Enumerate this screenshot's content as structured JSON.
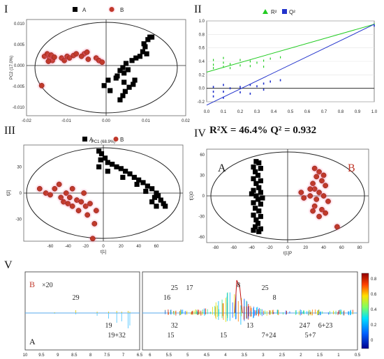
{
  "chart_data": [
    {
      "panel": "I",
      "type": "scatter",
      "xlabel": "",
      "ylabel": "PC2 (17.0%)",
      "xlim": [
        -0.02,
        0.02
      ],
      "ylim": [
        -0.012,
        0.011
      ],
      "xticks": [
        "-0.02",
        "-0.01",
        "0.00",
        "0.01",
        "0.02"
      ],
      "yticks": [
        "-0.010",
        "-0.005",
        "0.000",
        "0.005",
        "0.010"
      ],
      "series": [
        {
          "name": "A",
          "color": "#000000",
          "marker": "square",
          "points": [
            [
              0.011,
              0.0068
            ],
            [
              0.0115,
              0.0068
            ],
            [
              0.0105,
              0.0062
            ],
            [
              0.0095,
              0.0052
            ],
            [
              0.0098,
              0.0045
            ],
            [
              0.0092,
              0.0033
            ],
            [
              0.0102,
              0.0028
            ],
            [
              0.0085,
              0.0022
            ],
            [
              0.0075,
              0.0018
            ],
            [
              0.0065,
              0.0012
            ],
            [
              0.005,
              0.0005
            ],
            [
              0.0042,
              -0.0005
            ],
            [
              0.0055,
              -0.001
            ],
            [
              0.0045,
              -0.0018
            ],
            [
              0.0035,
              -0.0012
            ],
            [
              0.0028,
              -0.0025
            ],
            [
              0.0025,
              -0.003
            ],
            [
              0.0045,
              -0.004
            ],
            [
              0.0058,
              -0.0052
            ],
            [
              0.0068,
              -0.0045
            ],
            [
              0.0072,
              -0.0035
            ],
            [
              0.0048,
              -0.0062
            ],
            [
              0.0042,
              -0.0072
            ],
            [
              0.0035,
              -0.0082
            ],
            [
              -0.0005,
              -0.0048
            ],
            [
              0.001,
              -0.006
            ],
            [
              0.0005,
              -0.0035
            ]
          ]
        },
        {
          "name": "B",
          "color": "#c0392b",
          "marker": "circle",
          "points": [
            [
              -0.0155,
              0.0022
            ],
            [
              -0.0148,
              0.0028
            ],
            [
              -0.0142,
              0.0018
            ],
            [
              -0.0138,
              0.0025
            ],
            [
              -0.0135,
              0.0012
            ],
            [
              -0.013,
              0.002
            ],
            [
              -0.0145,
              0.001
            ],
            [
              -0.0112,
              0.0018
            ],
            [
              -0.0105,
              0.0012
            ],
            [
              -0.0098,
              0.0022
            ],
            [
              -0.0092,
              0.0018
            ],
            [
              -0.0082,
              0.0024
            ],
            [
              -0.0075,
              0.0028
            ],
            [
              -0.0055,
              0.0028
            ],
            [
              -0.0048,
              0.0032
            ],
            [
              -0.0062,
              0.0022
            ],
            [
              -0.0045,
              0.0015
            ],
            [
              -0.0025,
              0.0018
            ],
            [
              -0.0018,
              0.0012
            ],
            [
              -0.001,
              0.0008
            ],
            [
              -0.0162,
              -0.0048
            ]
          ]
        }
      ]
    },
    {
      "panel": "II",
      "type": "scatter",
      "xlim": [
        0,
        1.0
      ],
      "ylim": [
        -0.2,
        1.0
      ],
      "xticks": [
        "0.0",
        "0.1",
        "0.2",
        "0.3",
        "0.4",
        "0.5",
        "0.6",
        "0.7",
        "0.8",
        "0.9",
        "1.0"
      ],
      "yticks": [
        "-0.2",
        "0.0",
        "0.2",
        "0.4",
        "0.6",
        "0.8",
        "1.0"
      ],
      "legend": [
        "R²",
        "Q²"
      ],
      "series": [
        {
          "name": "R²",
          "color": "#22cc22",
          "marker": "triangle",
          "regression": [
            [
              0,
              0.24
            ],
            [
              1.0,
              0.95
            ]
          ],
          "points": [
            [
              0.04,
              0.42
            ],
            [
              0.04,
              0.35
            ],
            [
              0.04,
              0.3
            ],
            [
              0.1,
              0.45
            ],
            [
              0.1,
              0.38
            ],
            [
              0.1,
              0.32
            ],
            [
              0.14,
              0.36
            ],
            [
              0.14,
              0.3
            ],
            [
              0.2,
              0.42
            ],
            [
              0.2,
              0.34
            ],
            [
              0.26,
              0.4
            ],
            [
              0.26,
              0.33
            ],
            [
              0.3,
              0.38
            ],
            [
              0.34,
              0.41
            ],
            [
              0.34,
              0.32
            ],
            [
              0.38,
              0.44
            ],
            [
              0.44,
              0.46
            ],
            [
              1.0,
              0.95
            ]
          ]
        },
        {
          "name": "Q²",
          "color": "#2233cc",
          "marker": "square",
          "regression": [
            [
              0,
              -0.25
            ],
            [
              1.0,
              0.95
            ]
          ],
          "points": [
            [
              0.04,
              0.02
            ],
            [
              0.04,
              -0.05
            ],
            [
              0.04,
              -0.12
            ],
            [
              0.1,
              0.05
            ],
            [
              0.1,
              -0.05
            ],
            [
              0.1,
              -0.14
            ],
            [
              0.14,
              0.0
            ],
            [
              0.2,
              0.02
            ],
            [
              0.2,
              -0.06
            ],
            [
              0.26,
              0.05
            ],
            [
              0.26,
              -0.08
            ],
            [
              0.3,
              0.03
            ],
            [
              0.34,
              0.07
            ],
            [
              0.34,
              -0.02
            ],
            [
              0.38,
              0.1
            ],
            [
              0.44,
              0.12
            ],
            [
              1.0,
              0.93
            ]
          ]
        }
      ]
    },
    {
      "panel": "III",
      "type": "scatter",
      "xlabel": "t[1]",
      "ylabel": "t[2]",
      "title": "PC1 (68.9%)",
      "xlim": [
        -90,
        90
      ],
      "ylim": [
        -55,
        55
      ],
      "xticks": [
        "-60",
        "-40",
        "-20",
        "0",
        "20",
        "40",
        "60"
      ],
      "yticks": [
        "-30",
        "0",
        "30"
      ],
      "legend": [
        "A",
        "B"
      ],
      "series": [
        {
          "name": "A",
          "color": "#000000",
          "marker": "square",
          "points": [
            [
              -5,
              48
            ],
            [
              -2,
              45
            ],
            [
              2,
              40
            ],
            [
              -3,
              38
            ],
            [
              5,
              35
            ],
            [
              10,
              33
            ],
            [
              15,
              30
            ],
            [
              20,
              28
            ],
            [
              25,
              25
            ],
            [
              30,
              22
            ],
            [
              22,
              18
            ],
            [
              35,
              18
            ],
            [
              40,
              15
            ],
            [
              45,
              12
            ],
            [
              38,
              10
            ],
            [
              50,
              8
            ],
            [
              55,
              5
            ],
            [
              48,
              2
            ],
            [
              60,
              0
            ],
            [
              62,
              -3
            ],
            [
              58,
              -5
            ],
            [
              65,
              -8
            ],
            [
              68,
              -12
            ],
            [
              60,
              -15
            ],
            [
              55,
              -10
            ],
            [
              70,
              -15
            ],
            [
              5,
              25
            ],
            [
              -5,
              30
            ]
          ]
        },
        {
          "name": "B",
          "color": "#c0392b",
          "marker": "circle",
          "points": [
            [
              -72,
              5
            ],
            [
              -65,
              0
            ],
            [
              -60,
              -2
            ],
            [
              -55,
              5
            ],
            [
              -50,
              10
            ],
            [
              -48,
              -5
            ],
            [
              -45,
              -10
            ],
            [
              -40,
              -12
            ],
            [
              -35,
              -15
            ],
            [
              -42,
              0
            ],
            [
              -38,
              -5
            ],
            [
              -30,
              -8
            ],
            [
              -25,
              -10
            ],
            [
              -20,
              -15
            ],
            [
              -15,
              -12
            ],
            [
              -28,
              -20
            ],
            [
              -18,
              -25
            ],
            [
              -10,
              -35
            ],
            [
              -22,
              0
            ],
            [
              -35,
              5
            ],
            [
              -12,
              -52
            ],
            [
              -8,
              -20
            ]
          ]
        }
      ]
    },
    {
      "panel": "IV",
      "type": "scatter",
      "xlabel": "t[1]P",
      "ylabel": "t[1]O",
      "xlim": [
        -90,
        90
      ],
      "ylim": [
        -68,
        68
      ],
      "xticks": [
        "-80",
        "-60",
        "-40",
        "-20",
        "0",
        "20",
        "40",
        "60",
        "80"
      ],
      "yticks": [
        "-60",
        "-30",
        "0",
        "30",
        "60"
      ],
      "group_labels": [
        "A",
        "B"
      ],
      "stats_text": "R²X = 46.4%  Q² = 0.932",
      "series": [
        {
          "name": "A",
          "color": "#000000",
          "marker": "square",
          "points": [
            [
              -35,
              50
            ],
            [
              -32,
              48
            ],
            [
              -38,
              42
            ],
            [
              -30,
              40
            ],
            [
              -36,
              35
            ],
            [
              -33,
              30
            ],
            [
              -38,
              25
            ],
            [
              -30,
              22
            ],
            [
              -35,
              18
            ],
            [
              -32,
              12
            ],
            [
              -38,
              8
            ],
            [
              -30,
              5
            ],
            [
              -35,
              0
            ],
            [
              -33,
              -5
            ],
            [
              -38,
              -10
            ],
            [
              -30,
              -12
            ],
            [
              -36,
              -18
            ],
            [
              -32,
              -22
            ],
            [
              -38,
              -28
            ],
            [
              -30,
              -30
            ],
            [
              -35,
              -35
            ],
            [
              -33,
              -40
            ],
            [
              -36,
              -45
            ],
            [
              -30,
              -48
            ],
            [
              -38,
              -50
            ],
            [
              -32,
              -52
            ],
            [
              -28,
              -3
            ],
            [
              -40,
              3
            ]
          ]
        },
        {
          "name": "B",
          "color": "#c0392b",
          "marker": "circle",
          "points": [
            [
              30,
              40
            ],
            [
              35,
              35
            ],
            [
              40,
              30
            ],
            [
              32,
              28
            ],
            [
              38,
              22
            ],
            [
              28,
              18
            ],
            [
              42,
              15
            ],
            [
              30,
              10
            ],
            [
              35,
              5
            ],
            [
              25,
              0
            ],
            [
              40,
              0
            ],
            [
              32,
              -5
            ],
            [
              15,
              5
            ],
            [
              18,
              -3
            ],
            [
              45,
              -8
            ],
            [
              30,
              -15
            ],
            [
              38,
              -20
            ],
            [
              28,
              -22
            ],
            [
              42,
              -25
            ],
            [
              35,
              -30
            ],
            [
              55,
              -45
            ],
            [
              25,
              10
            ]
          ]
        }
      ]
    },
    {
      "panel": "V",
      "type": "line",
      "note": "Statistical total correlation spectroscopy-style loadings plot, upper part B (x20) and lower part A",
      "xlim": [
        10,
        0.5
      ],
      "xticks": [
        "10",
        "9.5",
        "9",
        "8.5",
        "8",
        "7.5",
        "7",
        "6.5",
        "6",
        "5.5",
        "5",
        "4.5",
        "4",
        "3.5",
        "3",
        "2.5",
        "2",
        "1.5",
        "1",
        "0.5"
      ],
      "colorbar_ticks": [
        "0.8",
        "0.6",
        "0.4",
        "0.2",
        "0"
      ],
      "labels": {
        "upper": "B",
        "zoom": "×20",
        "lower": "A"
      },
      "annotations_left": [
        {
          "text": "29",
          "x": 8.45,
          "pos": "up"
        },
        {
          "text": "19",
          "x": 7.45,
          "pos": "down"
        },
        {
          "text": "19+32",
          "x": 7.2,
          "pos": "down2"
        }
      ],
      "annotations_right": [
        {
          "text": "16",
          "x": 5.55,
          "pos": "up"
        },
        {
          "text": "25",
          "x": 5.35,
          "pos": "up2"
        },
        {
          "text": "17",
          "x": 4.95,
          "pos": "up2"
        },
        {
          "text": "32",
          "x": 5.35,
          "pos": "down"
        },
        {
          "text": "15",
          "x": 5.45,
          "pos": "down2"
        },
        {
          "text": "15",
          "x": 4.05,
          "pos": "down2"
        },
        {
          "text": "8",
          "x": 3.65,
          "pos": "top"
        },
        {
          "text": "13",
          "x": 3.35,
          "pos": "down"
        },
        {
          "text": "25",
          "x": 2.95,
          "pos": "up2"
        },
        {
          "text": "8",
          "x": 2.7,
          "pos": "up"
        },
        {
          "text": "7+24",
          "x": 2.85,
          "pos": "down2"
        },
        {
          "text": "24",
          "x": 1.95,
          "pos": "down"
        },
        {
          "text": "7",
          "x": 1.8,
          "pos": "down"
        },
        {
          "text": "5+7",
          "x": 1.75,
          "pos": "down2"
        },
        {
          "text": "6+23",
          "x": 1.35,
          "pos": "down"
        }
      ]
    }
  ],
  "panel_labels": [
    "I",
    "II",
    "III",
    "IV",
    "V"
  ]
}
